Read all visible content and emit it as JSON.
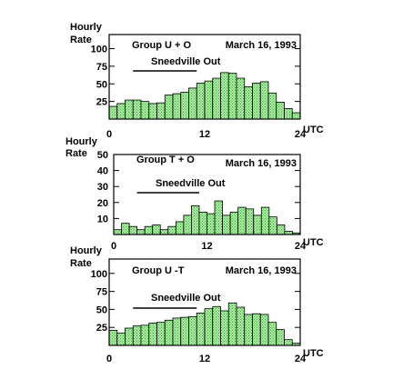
{
  "chart_data": [
    {
      "type": "bar",
      "title": "Group U + O",
      "date": "March 16, 1993",
      "annotation": "Sneedville Out",
      "ylabel_line1": "Hourly",
      "ylabel_line2": "Rate",
      "xlabel": "UTC",
      "xlim": [
        0,
        24
      ],
      "ylim": [
        0,
        120
      ],
      "yticks": [
        25,
        50,
        75,
        100
      ],
      "xticks": [
        0,
        12,
        24
      ],
      "bar_color": "#a6f0a0",
      "x": [
        0,
        1,
        2,
        3,
        4,
        5,
        6,
        7,
        8,
        9,
        10,
        11,
        12,
        13,
        14,
        15,
        16,
        17,
        18,
        19,
        20,
        21,
        22,
        23
      ],
      "values": [
        18,
        22,
        27,
        27,
        25,
        22,
        23,
        34,
        36,
        38,
        44,
        51,
        54,
        58,
        66,
        65,
        58,
        46,
        51,
        53,
        37,
        24,
        15,
        9
      ]
    },
    {
      "type": "bar",
      "title": "Group T + O",
      "date": "March 16, 1993",
      "annotation": "Sneedville Out",
      "ylabel_line1": "Hourly",
      "ylabel_line2": "Rate",
      "xlabel": "UTC",
      "xlim": [
        0,
        24
      ],
      "ylim": [
        0,
        50
      ],
      "yticks": [
        10,
        20,
        30,
        40,
        50
      ],
      "xticks": [
        0,
        12,
        24
      ],
      "bar_color": "#a6f0a0",
      "x": [
        0,
        1,
        2,
        3,
        4,
        5,
        6,
        7,
        8,
        9,
        10,
        11,
        12,
        13,
        14,
        15,
        16,
        17,
        18,
        19,
        20,
        21,
        22,
        23
      ],
      "values": [
        3,
        7,
        5,
        3,
        5,
        6,
        3,
        5,
        8,
        12,
        18,
        14,
        13,
        21,
        12,
        14,
        17,
        16,
        12,
        17,
        11,
        6,
        2,
        1
      ]
    },
    {
      "type": "bar",
      "title": "Group U -T",
      "date": "March 16, 1993",
      "annotation": "Sneedville Out",
      "ylabel_line1": "Hourly",
      "ylabel_line2": "Rate",
      "xlabel": "UTC",
      "xlim": [
        0,
        24
      ],
      "ylim": [
        0,
        120
      ],
      "yticks": [
        25,
        50,
        75,
        100
      ],
      "xticks": [
        0,
        12,
        24
      ],
      "bar_color": "#a6f0a0",
      "x": [
        0,
        1,
        2,
        3,
        4,
        5,
        6,
        7,
        8,
        9,
        10,
        11,
        12,
        13,
        14,
        15,
        16,
        17,
        18,
        19,
        20,
        21,
        22,
        23
      ],
      "values": [
        21,
        17,
        24,
        27,
        28,
        31,
        32,
        35,
        38,
        39,
        40,
        45,
        51,
        54,
        48,
        59,
        53,
        43,
        44,
        43,
        32,
        22,
        8,
        3
      ]
    }
  ]
}
